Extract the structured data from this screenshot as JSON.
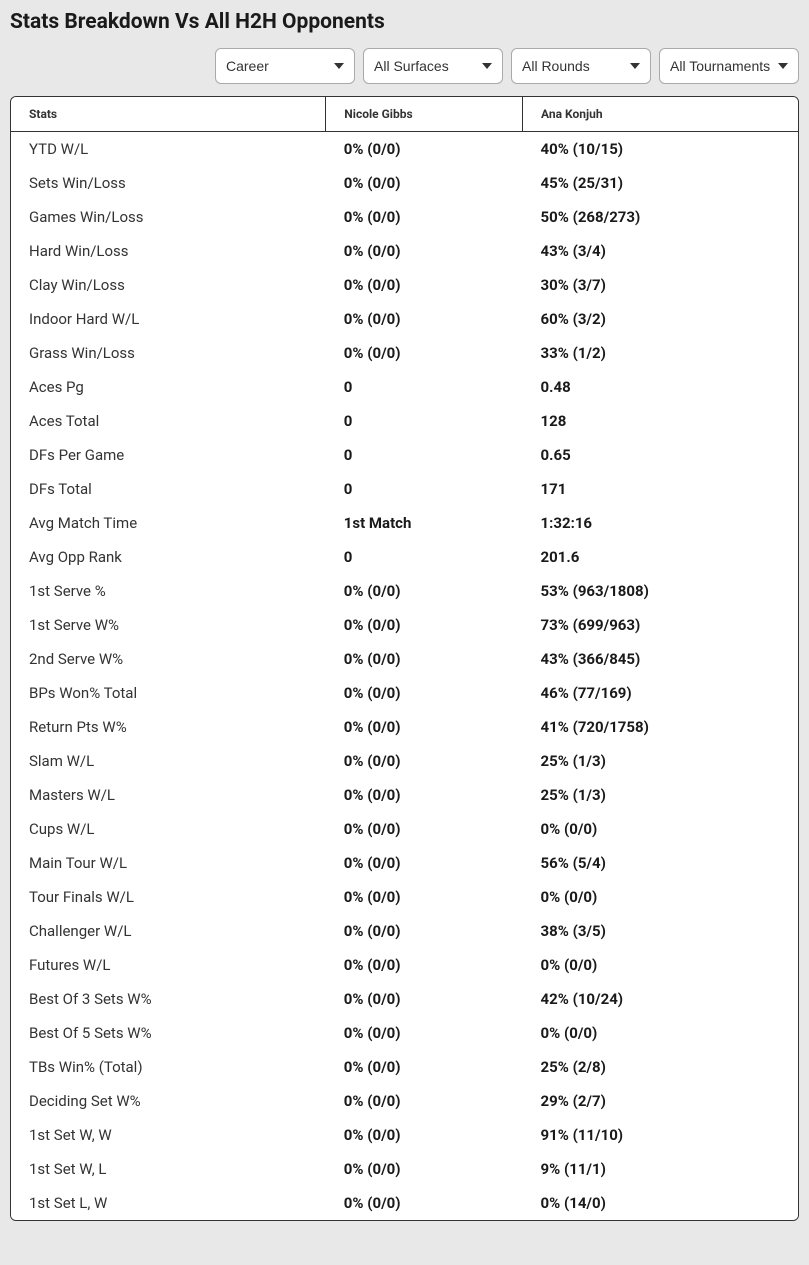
{
  "title": "Stats Breakdown Vs All H2H Opponents",
  "filters": {
    "period": {
      "selected": "Career",
      "options": [
        "Career"
      ]
    },
    "surface": {
      "selected": "All Surfaces",
      "options": [
        "All Surfaces"
      ]
    },
    "round": {
      "selected": "All Rounds",
      "options": [
        "All Rounds"
      ]
    },
    "tournament": {
      "selected": "All Tournaments",
      "options": [
        "All Tournaments"
      ]
    }
  },
  "columns": {
    "stats": "Stats",
    "player1": "Nicole Gibbs",
    "player2": "Ana Konjuh"
  },
  "rows": [
    {
      "stat": "YTD W/L",
      "p1": "0% (0/0)",
      "p2": "40% (10/15)"
    },
    {
      "stat": "Sets Win/Loss",
      "p1": "0% (0/0)",
      "p2": "45% (25/31)"
    },
    {
      "stat": "Games Win/Loss",
      "p1": "0% (0/0)",
      "p2": "50% (268/273)"
    },
    {
      "stat": "Hard Win/Loss",
      "p1": "0% (0/0)",
      "p2": "43% (3/4)"
    },
    {
      "stat": "Clay Win/Loss",
      "p1": "0% (0/0)",
      "p2": "30% (3/7)"
    },
    {
      "stat": "Indoor Hard W/L",
      "p1": "0% (0/0)",
      "p2": "60% (3/2)"
    },
    {
      "stat": "Grass Win/Loss",
      "p1": "0% (0/0)",
      "p2": "33% (1/2)"
    },
    {
      "stat": "Aces Pg",
      "p1": "0",
      "p2": "0.48"
    },
    {
      "stat": "Aces Total",
      "p1": "0",
      "p2": "128"
    },
    {
      "stat": "DFs Per Game",
      "p1": "0",
      "p2": "0.65"
    },
    {
      "stat": "DFs Total",
      "p1": "0",
      "p2": "171"
    },
    {
      "stat": "Avg Match Time",
      "p1": "1st Match",
      "p2": "1:32:16"
    },
    {
      "stat": "Avg Opp Rank",
      "p1": "0",
      "p2": "201.6"
    },
    {
      "stat": "1st Serve %",
      "p1": "0% (0/0)",
      "p2": "53% (963/1808)"
    },
    {
      "stat": "1st Serve W%",
      "p1": "0% (0/0)",
      "p2": "73% (699/963)"
    },
    {
      "stat": "2nd Serve W%",
      "p1": "0% (0/0)",
      "p2": "43% (366/845)"
    },
    {
      "stat": "BPs Won% Total",
      "p1": "0% (0/0)",
      "p2": "46% (77/169)"
    },
    {
      "stat": "Return Pts W%",
      "p1": "0% (0/0)",
      "p2": "41% (720/1758)"
    },
    {
      "stat": "Slam W/L",
      "p1": "0% (0/0)",
      "p2": "25% (1/3)"
    },
    {
      "stat": "Masters W/L",
      "p1": "0% (0/0)",
      "p2": "25% (1/3)"
    },
    {
      "stat": "Cups W/L",
      "p1": "0% (0/0)",
      "p2": "0% (0/0)"
    },
    {
      "stat": "Main Tour W/L",
      "p1": "0% (0/0)",
      "p2": "56% (5/4)"
    },
    {
      "stat": "Tour Finals W/L",
      "p1": "0% (0/0)",
      "p2": "0% (0/0)"
    },
    {
      "stat": "Challenger W/L",
      "p1": "0% (0/0)",
      "p2": "38% (3/5)"
    },
    {
      "stat": "Futures W/L",
      "p1": "0% (0/0)",
      "p2": "0% (0/0)"
    },
    {
      "stat": "Best Of 3 Sets W%",
      "p1": "0% (0/0)",
      "p2": "42% (10/24)"
    },
    {
      "stat": "Best Of 5 Sets W%",
      "p1": "0% (0/0)",
      "p2": "0% (0/0)"
    },
    {
      "stat": "TBs Win% (Total)",
      "p1": "0% (0/0)",
      "p2": "25% (2/8)"
    },
    {
      "stat": "Deciding Set W%",
      "p1": "0% (0/0)",
      "p2": "29% (2/7)"
    },
    {
      "stat": "1st Set W, W",
      "p1": "0% (0/0)",
      "p2": "91% (11/10)"
    },
    {
      "stat": "1st Set W, L",
      "p1": "0% (0/0)",
      "p2": "9% (11/1)"
    },
    {
      "stat": "1st Set L, W",
      "p1": "0% (0/0)",
      "p2": "0% (14/0)"
    }
  ]
}
